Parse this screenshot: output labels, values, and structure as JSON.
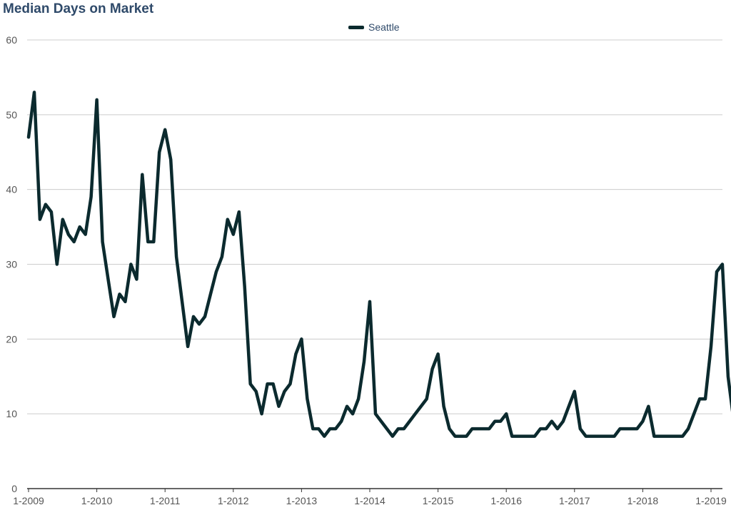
{
  "chart_data": {
    "type": "line",
    "title": "Median Days on Market",
    "xlabel": "",
    "ylabel": "",
    "ylim": [
      0,
      60
    ],
    "yticks": [
      0,
      10,
      20,
      30,
      40,
      50,
      60
    ],
    "xticks": [
      "1-2009",
      "1-2010",
      "1-2011",
      "1-2012",
      "1-2013",
      "1-2014",
      "1-2015",
      "1-2016",
      "1-2017",
      "1-2018",
      "1-2019"
    ],
    "x_start": "1-2009",
    "x_end": "3-2019",
    "grid": true,
    "legend_position": "top-center",
    "series": [
      {
        "name": "Seattle",
        "color": "#0b2a2e",
        "values": [
          47,
          53,
          36,
          38,
          37,
          30,
          36,
          34,
          33,
          35,
          34,
          39,
          52,
          33,
          28,
          23,
          26,
          25,
          30,
          28,
          42,
          33,
          33,
          45,
          48,
          44,
          31,
          25,
          19,
          23,
          22,
          23,
          26,
          29,
          31,
          36,
          34,
          37,
          27,
          14,
          13,
          10,
          14,
          14,
          11,
          13,
          14,
          18,
          20,
          12,
          8,
          8,
          7,
          8,
          8,
          9,
          11,
          10,
          12,
          17,
          25,
          10,
          9,
          8,
          7,
          8,
          8,
          9,
          10,
          11,
          12,
          16,
          18,
          11,
          8,
          7,
          7,
          7,
          8,
          8,
          8,
          8,
          9,
          9,
          10,
          7,
          7,
          7,
          7,
          7,
          8,
          8,
          9,
          8,
          9,
          11,
          13,
          8,
          7,
          7,
          7,
          7,
          7,
          7,
          8,
          8,
          8,
          8,
          9,
          11,
          7,
          7,
          7,
          7,
          7,
          7,
          8,
          10,
          12,
          12,
          19,
          29,
          30,
          15,
          9
        ]
      }
    ]
  }
}
